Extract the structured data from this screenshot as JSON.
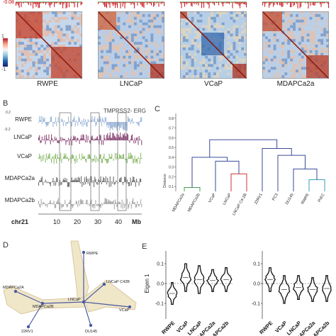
{
  "panel_a": {
    "colorbar_top": "1",
    "colorbar_bottom": "-1",
    "top_track_value": "-0.08",
    "heatmaps": [
      "RWPE",
      "LNCaP",
      "VCaP",
      "MDAPCa2a"
    ]
  },
  "panel_b": {
    "letter": "B",
    "gene_label": "TMPRSS2- ERG",
    "scale_top": "0.2",
    "scale_bottom": "-0.2",
    "tracks": [
      {
        "name": "RWPE",
        "color": "#9db7da"
      },
      {
        "name": "LNCaP",
        "color": "#8e4a78"
      },
      {
        "name": "VCaP",
        "color": "#8fbd6e"
      },
      {
        "name": "MDAPCa2a",
        "color": "#6e6e6e"
      },
      {
        "name": "MDAPCa2b",
        "color": "#a9a9a9"
      }
    ],
    "chrom": "chr21",
    "ticks": [
      "10",
      "20",
      "30",
      "40"
    ],
    "unit": "Mb"
  },
  "panel_c": {
    "letter": "C",
    "ylabel": "Distance",
    "yticks": [
      "0.1",
      "0.2",
      "0.3",
      "0.4",
      "0.5",
      "0.6",
      "0.7",
      "0.8"
    ],
    "leaves": [
      "MDAPCa2a",
      "MDAPCa2b",
      "VCaP",
      "LNCaP",
      "LNCaP C4-2B",
      "22RV1",
      "PC3",
      "DU145",
      "RWPE",
      "PrEC"
    ]
  },
  "panel_d": {
    "letter": "D",
    "nodes": [
      "RWPE",
      "MDAPCa2A",
      "MDAPCa2B",
      "LNCaP",
      "LNCaP C42B",
      "VCaP",
      "22RV1",
      "DU145"
    ]
  },
  "panel_e": {
    "letter": "E",
    "ylabel": "Eigen 1",
    "yticks": [
      "0.1",
      "0.0",
      "-0.1"
    ],
    "left_xlabels": [
      "RWPE",
      "VCaP",
      "LNCaP",
      "MDAPCa2a",
      "MDAPCa2b"
    ],
    "right_xlabels": [
      "RWPE",
      "VCaP",
      "LNCaP",
      "MDAPCa2a",
      "MDAPCa2b"
    ]
  }
}
